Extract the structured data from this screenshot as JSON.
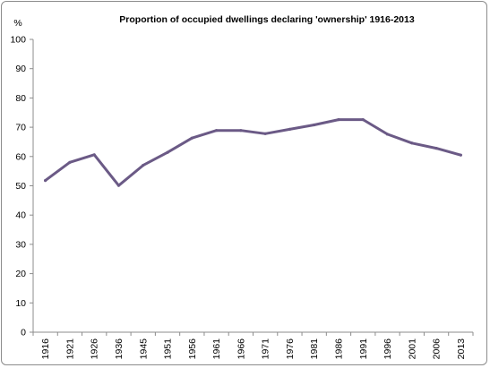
{
  "chart_data": {
    "type": "line",
    "title": "Proportion  of  occupied  dwellings  declaring  'ownership'  1916-2013",
    "ylabel": "%",
    "xlabel": "",
    "categories": [
      "1916",
      "1921",
      "1926",
      "1936",
      "1945",
      "1951",
      "1956",
      "1961",
      "1966",
      "1971",
      "1976",
      "1981",
      "1986",
      "1991",
      "1996",
      "2001",
      "2006",
      "2013"
    ],
    "series": [
      {
        "values": [
          51.8,
          58.0,
          60.6,
          50.1,
          57.0,
          61.4,
          66.3,
          68.9,
          68.9,
          67.8,
          69.3,
          70.8,
          72.6,
          72.6,
          67.6,
          64.6,
          62.8,
          60.5
        ]
      }
    ],
    "ylim": [
      0,
      100
    ],
    "yticks": [
      0,
      10,
      20,
      30,
      40,
      50,
      60,
      70,
      80,
      90,
      100
    ],
    "grid": false,
    "legend": "none",
    "colors": {
      "line": "#6b5a86",
      "axis": "#8c8c8c",
      "frame": "#8c8c8c"
    }
  }
}
